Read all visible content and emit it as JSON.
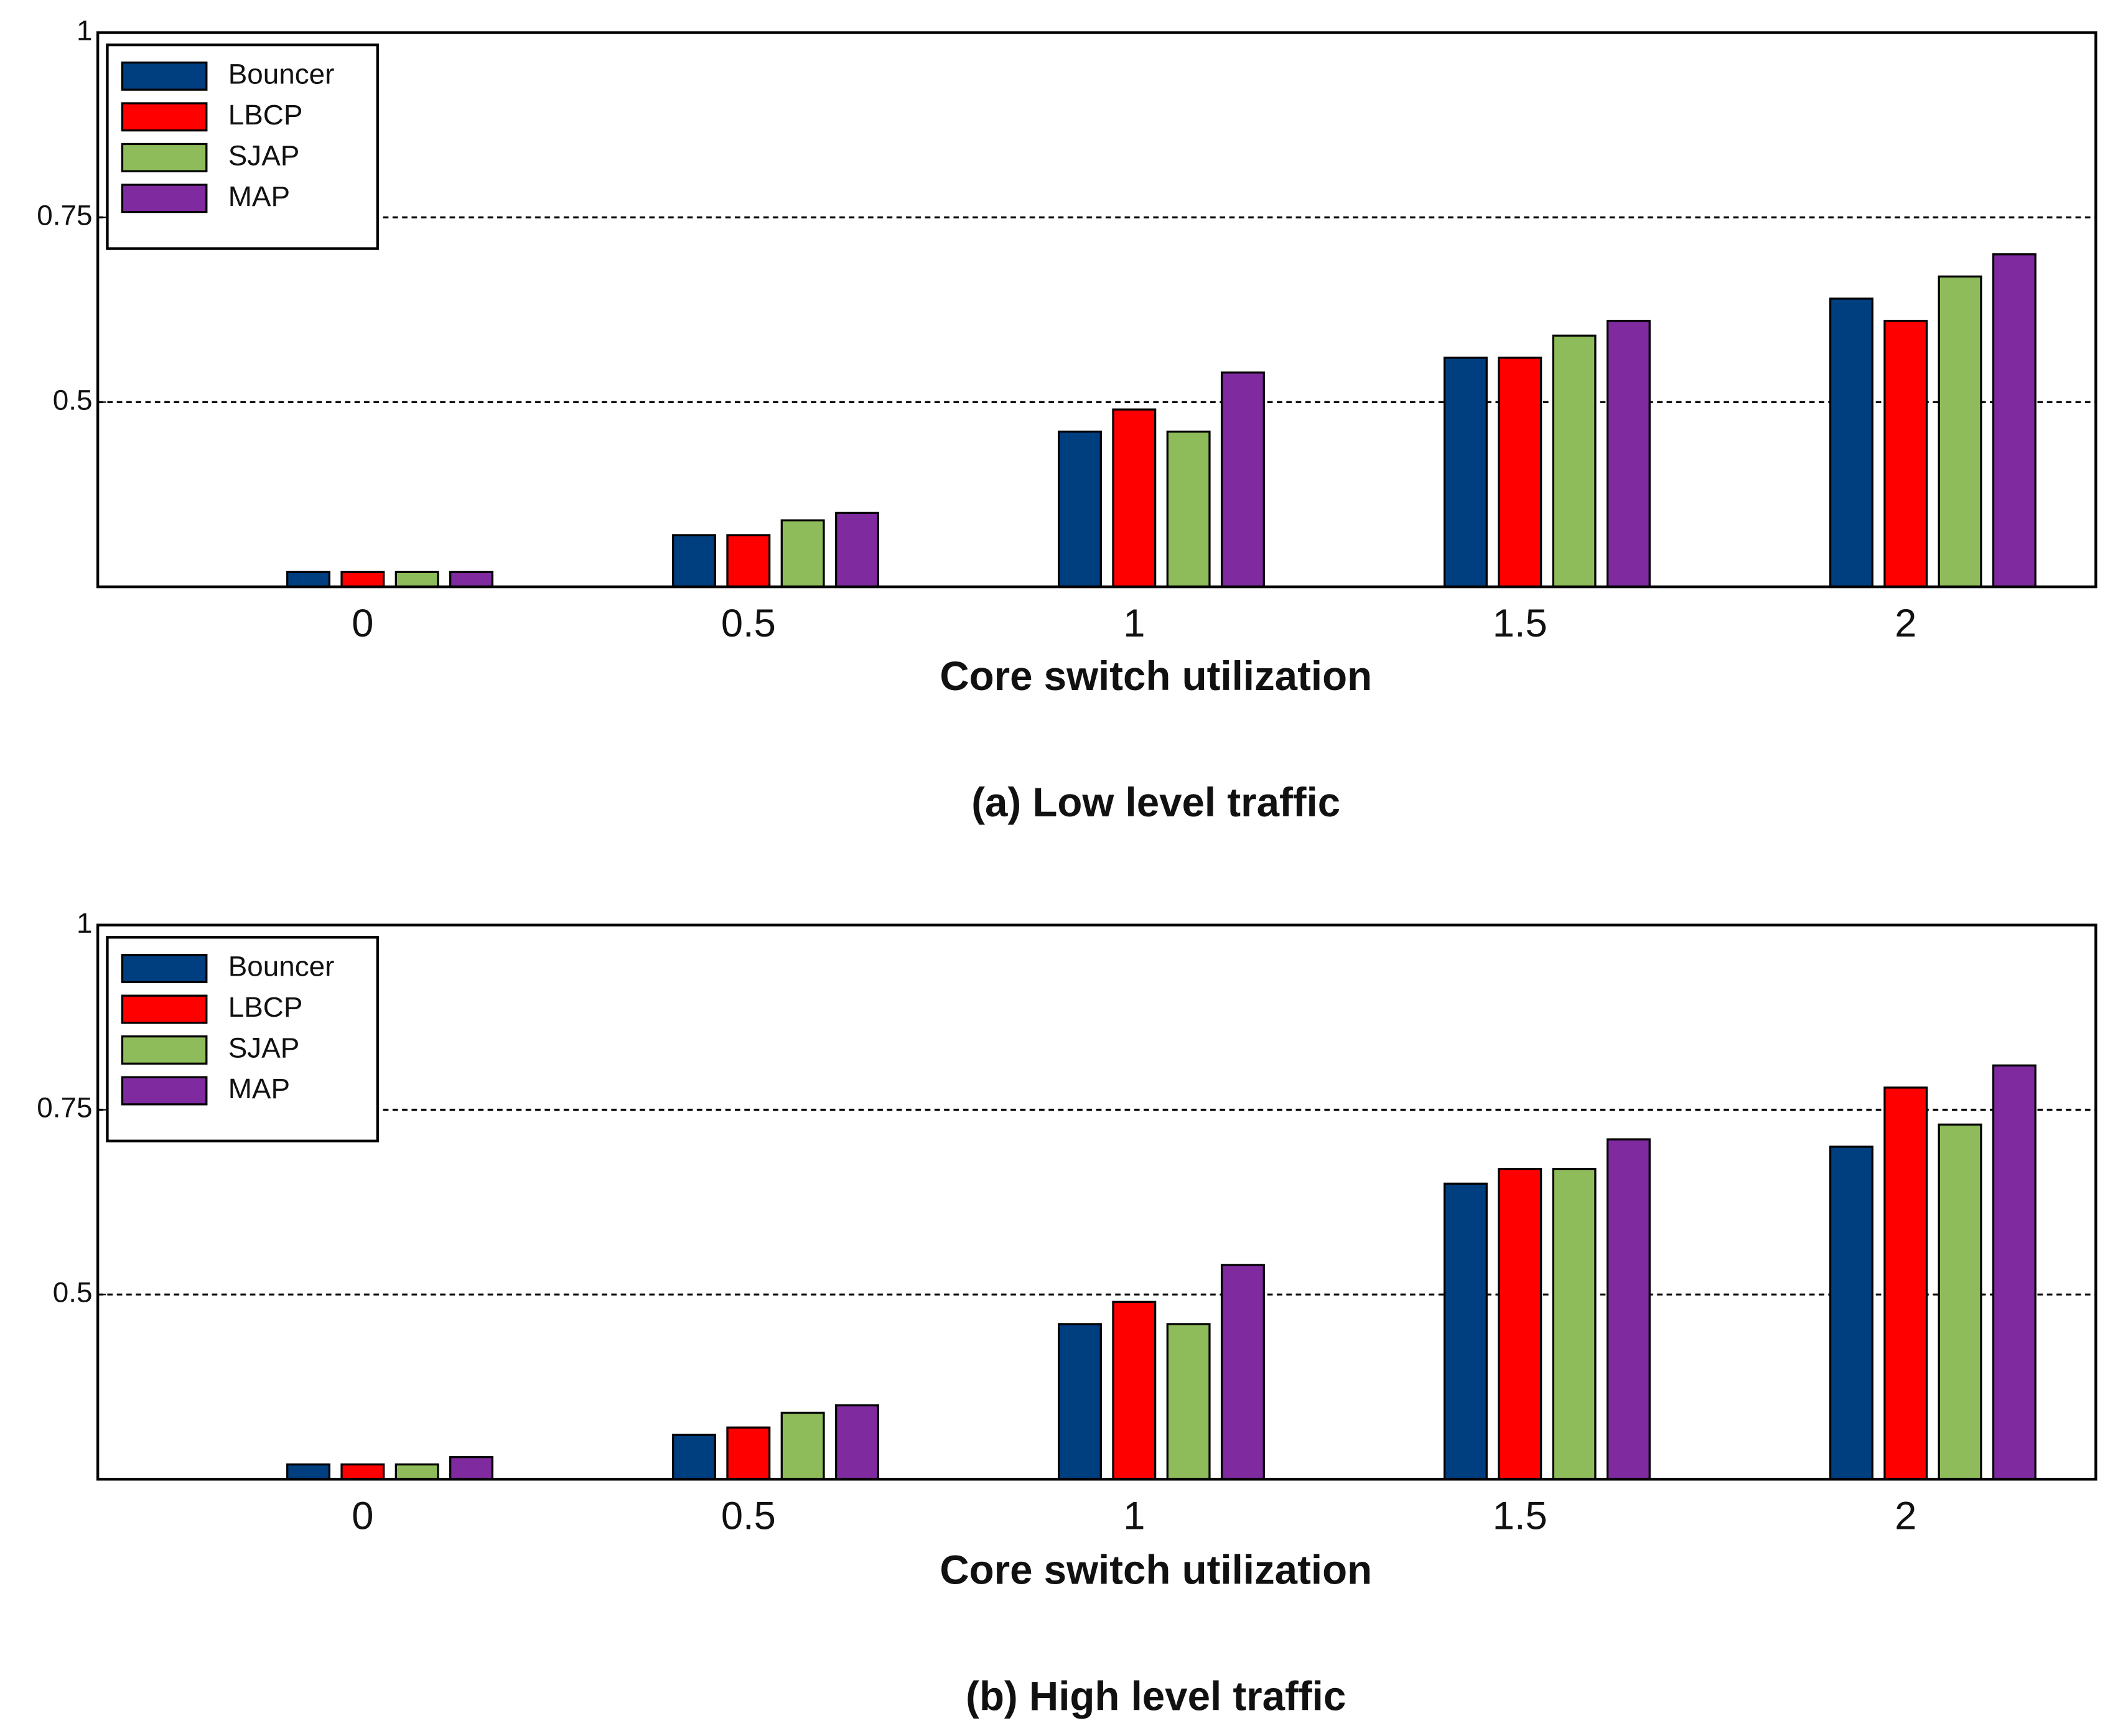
{
  "chart_data": [
    {
      "type": "bar",
      "title": "(a) Low level traffic",
      "x_label": "Core switch utilization",
      "categories": [
        "0",
        "0.5",
        "1",
        "1.5",
        "2"
      ],
      "series": [
        {
          "name": "Bouncer",
          "color": "#003f7f",
          "values": [
            0.27,
            0.32,
            0.46,
            0.56,
            0.64
          ]
        },
        {
          "name": "LBCP",
          "color": "#ff0000",
          "values": [
            0.27,
            0.32,
            0.49,
            0.56,
            0.61
          ]
        },
        {
          "name": "SJAP",
          "color": "#8fbc5a",
          "values": [
            0.27,
            0.34,
            0.46,
            0.59,
            0.67
          ]
        },
        {
          "name": "MAP",
          "color": "#7f2a9e",
          "values": [
            0.27,
            0.35,
            0.54,
            0.61,
            0.7
          ]
        }
      ],
      "ylim": [
        0.25,
        1
      ],
      "yticks": [
        0.5,
        0.75,
        1
      ],
      "grid": true,
      "legend": "upper left"
    },
    {
      "type": "bar",
      "title": "(b) High level traffic",
      "x_label": "Core switch utilization",
      "categories": [
        "0",
        "0.5",
        "1",
        "1.5",
        "2"
      ],
      "series": [
        {
          "name": "Bouncer",
          "color": "#003f7f",
          "values": [
            0.27,
            0.31,
            0.46,
            0.65,
            0.7
          ]
        },
        {
          "name": "LBCP",
          "color": "#ff0000",
          "values": [
            0.27,
            0.32,
            0.49,
            0.67,
            0.78
          ]
        },
        {
          "name": "SJAP",
          "color": "#8fbc5a",
          "values": [
            0.27,
            0.34,
            0.46,
            0.67,
            0.73
          ]
        },
        {
          "name": "MAP",
          "color": "#7f2a9e",
          "values": [
            0.28,
            0.35,
            0.54,
            0.71,
            0.81
          ]
        }
      ],
      "ylim": [
        0.25,
        1
      ],
      "yticks": [
        0.5,
        0.75,
        1
      ],
      "grid": true,
      "legend": "upper left"
    }
  ]
}
